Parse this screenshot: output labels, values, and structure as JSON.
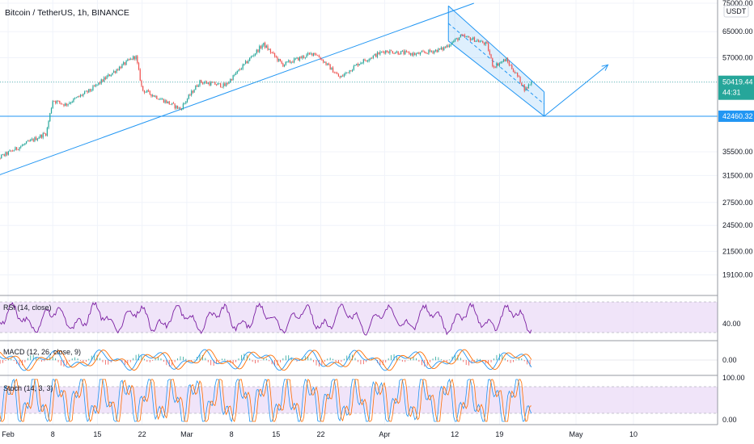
{
  "header": {
    "title": "Bitcoin / TetherUS, 1h, BINANCE",
    "currency": "USDT"
  },
  "colors": {
    "up": "#26a69a",
    "down": "#ef5350",
    "drawing": "#2196f3",
    "current_price": "#26a69a",
    "rsi": "#7b1fa2",
    "band": "#e9d9f6",
    "macd": "#2196f3",
    "signal": "#ff6d00",
    "stoch_k": "#2196f3",
    "stoch_d": "#ff6d00"
  },
  "chart_data": [
    {
      "type": "candlestick",
      "x_ticks": [
        "Feb",
        "8",
        "15",
        "22",
        "Mar",
        "8",
        "15",
        "22",
        "Apr",
        "12",
        "19",
        "May",
        "10"
      ],
      "y_ticks": [
        75000,
        65000,
        57000,
        50419.44,
        42460.32,
        35500,
        31500,
        27500,
        24500,
        21500,
        19100
      ],
      "y_tick_labels": [
        "75000.00",
        "65000.00",
        "57000.00",
        "35500.00",
        "31500.00",
        "27500.00",
        "24500.00",
        "21500.00",
        "19100.00"
      ],
      "ylim": [
        17500,
        75000
      ],
      "y_scale": "log",
      "close_path": [
        {
          "x": "Jan 29",
          "y": 33500
        },
        {
          "x": "Feb 3",
          "y": 36500
        },
        {
          "x": "Feb 7",
          "y": 39000
        },
        {
          "x": "Feb 8",
          "y": 46000
        },
        {
          "x": "Feb 10",
          "y": 45000
        },
        {
          "x": "Feb 14",
          "y": 48500
        },
        {
          "x": "Feb 19",
          "y": 55000
        },
        {
          "x": "Feb 21",
          "y": 57500
        },
        {
          "x": "Feb 22",
          "y": 48500
        },
        {
          "x": "Feb 28",
          "y": 44000
        },
        {
          "x": "Mar 3",
          "y": 50500
        },
        {
          "x": "Mar 7",
          "y": 49500
        },
        {
          "x": "Mar 10",
          "y": 55000
        },
        {
          "x": "Mar 13",
          "y": 61000
        },
        {
          "x": "Mar 16",
          "y": 55000
        },
        {
          "x": "Mar 21",
          "y": 58500
        },
        {
          "x": "Mar 25",
          "y": 51500
        },
        {
          "x": "Mar 28",
          "y": 55500
        },
        {
          "x": "Apr 1",
          "y": 59000
        },
        {
          "x": "Apr 6",
          "y": 58000
        },
        {
          "x": "Apr 10",
          "y": 59500
        },
        {
          "x": "Apr 13",
          "y": 63500
        },
        {
          "x": "Apr 15",
          "y": 62500
        },
        {
          "x": "Apr 17",
          "y": 61000
        },
        {
          "x": "Apr 18",
          "y": 54500
        },
        {
          "x": "Apr 20",
          "y": 56500
        },
        {
          "x": "Apr 21",
          "y": 54000
        },
        {
          "x": "Apr 22",
          "y": 51500
        },
        {
          "x": "Apr 23",
          "y": 48500
        },
        {
          "x": "Apr 24",
          "y": 50419.44
        }
      ],
      "current_price": 50419.44,
      "countdown": "44:31",
      "target_price": 42460.32,
      "drawings": [
        {
          "kind": "support-line",
          "from": {
            "x": "Jan 29",
            "y": 31000
          },
          "to": {
            "x": "Apr 15",
            "y": 75000
          }
        },
        {
          "kind": "horizontal-line",
          "y": 42460.32
        },
        {
          "kind": "channel-upper",
          "from": {
            "x": "Apr 11",
            "y": 74000
          },
          "to": {
            "x": "Apr 26",
            "y": 48000
          }
        },
        {
          "kind": "channel-lower",
          "from": {
            "x": "Apr 11",
            "y": 62000
          },
          "to": {
            "x": "Apr 26",
            "y": 42460.32
          }
        },
        {
          "kind": "projection-arrow",
          "from": {
            "x": "Apr 26",
            "y": 42460.32
          },
          "to": {
            "x": "May 6",
            "y": 55000
          }
        }
      ]
    },
    {
      "type": "line",
      "name": "RSI (14, close)",
      "current_value": 40.0,
      "y_ticks": [
        "40.00"
      ],
      "band": [
        30,
        70
      ]
    },
    {
      "type": "line",
      "name": "MACD (12, 26, close, 9)",
      "y_ticks": [
        "0.00"
      ]
    },
    {
      "type": "line",
      "name": "Stoch (14, 3, 3)",
      "y_ticks": [
        "100.00",
        "0.00"
      ],
      "band": [
        20,
        80
      ]
    }
  ],
  "labels": {
    "current_price": "50419.44",
    "target_price": "42460.32",
    "rsi_value": "40.00",
    "macd_value": "0.00",
    "stoch_top": "100.00",
    "stoch_bottom": "0.00"
  }
}
